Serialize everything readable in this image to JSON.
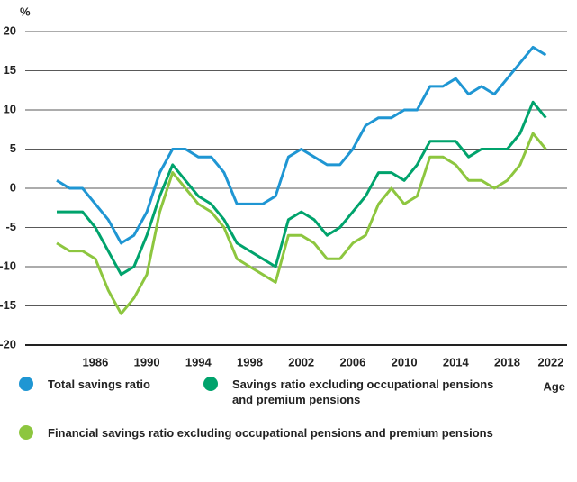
{
  "chart_data": {
    "type": "line",
    "y_label": "%",
    "x_label": "Age",
    "x": [
      1983,
      1984,
      1985,
      1986,
      1987,
      1988,
      1989,
      1990,
      1991,
      1992,
      1993,
      1994,
      1995,
      1996,
      1997,
      1998,
      1999,
      2000,
      2001,
      2002,
      2003,
      2004,
      2005,
      2006,
      2007,
      2008,
      2009,
      2010,
      2011,
      2012,
      2013,
      2014,
      2015,
      2016,
      2017,
      2018,
      2019,
      2020,
      2021
    ],
    "series": [
      {
        "name": "Total savings ratio",
        "color": "#1f96d3",
        "values": [
          1,
          0,
          0,
          -2,
          -4,
          -7,
          -6,
          -3,
          2,
          5,
          5,
          4,
          4,
          2,
          -2,
          -2,
          -2,
          -1,
          4,
          5,
          4,
          3,
          3,
          5,
          8,
          9,
          9,
          10,
          10,
          13,
          13,
          14,
          12,
          13,
          12,
          14,
          16,
          18,
          17
        ]
      },
      {
        "name": "Savings ratio excluding occupational pensions and premium pensions",
        "color": "#00a36c",
        "values": [
          -3,
          -3,
          -3,
          -5,
          -8,
          -11,
          -10,
          -6,
          -1,
          3,
          1,
          -1,
          -2,
          -4,
          -7,
          -8,
          -9,
          -10,
          -4,
          -3,
          -4,
          -6,
          -5,
          -3,
          -1,
          2,
          2,
          1,
          3,
          6,
          6,
          6,
          4,
          5,
          5,
          5,
          7,
          11,
          9
        ]
      },
      {
        "name": "Financial savings ratio excluding occupational pensions and premium pensions",
        "color": "#8dc63f",
        "values": [
          -7,
          -8,
          -8,
          -9,
          -13,
          -16,
          -14,
          -11,
          -3,
          2,
          0,
          -2,
          -3,
          -5,
          -9,
          -10,
          -11,
          -12,
          -6,
          -6,
          -7,
          -9,
          -9,
          -7,
          -6,
          -2,
          0,
          -2,
          -1,
          4,
          4,
          3,
          1,
          1,
          0,
          1,
          3,
          7,
          5
        ]
      }
    ],
    "xlim": [
      1982.3,
      2022.3
    ],
    "xticks": [
      1986,
      1990,
      1994,
      1998,
      2002,
      2006,
      2010,
      2014,
      2018,
      2022
    ],
    "ylim": [
      -20,
      20
    ],
    "yticks": [
      -20,
      -15,
      -10,
      -5,
      0,
      5,
      10,
      15,
      20
    ],
    "grid": true
  }
}
